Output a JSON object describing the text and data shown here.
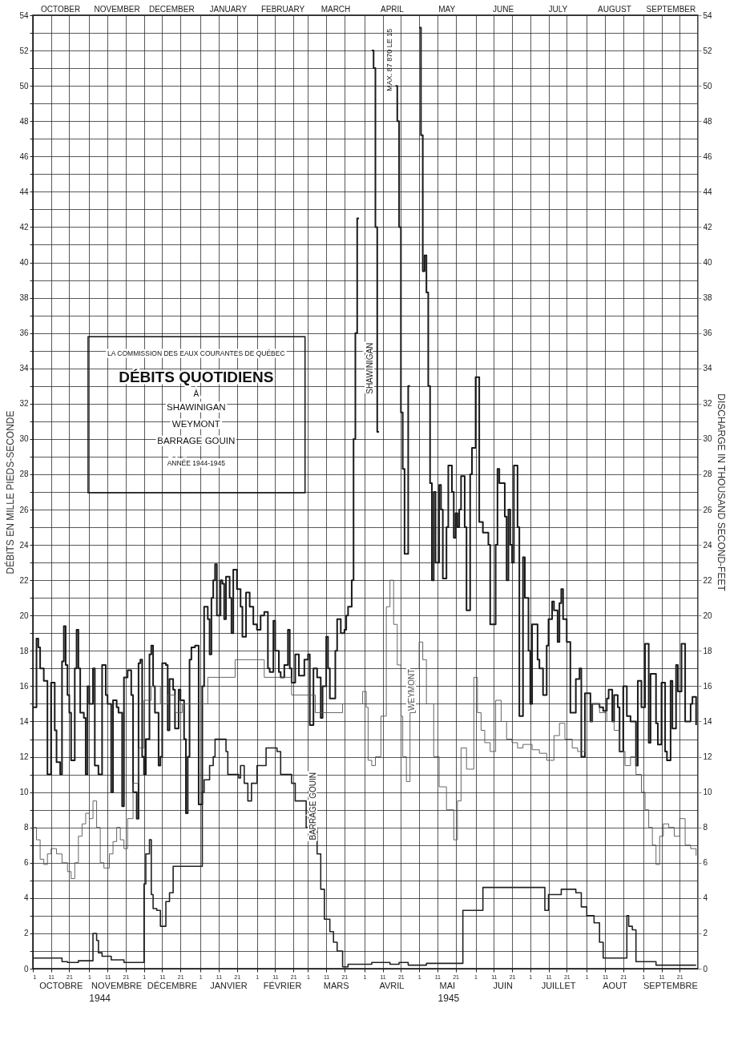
{
  "chart_data": {
    "type": "step",
    "title": "DÉBITS QUOTIDIENS",
    "subtitle": "LA COMMISSION DES EAUX COURANTES DE QUÉBEC",
    "ylabel": "DÉBITS EN MILLE PIEDS-SECONDE",
    "y2label": "DISCHARGE IN THOUSAND SECOND-FEET",
    "annotations": [
      "À",
      "SHAWINIGAN",
      "WEYMONT",
      "BARRAGE GOUIN",
      "ANNÉE 1944-1945",
      "MAX. 87 870 LE 15",
      "1944",
      "1945",
      "OCTOBRE",
      "NOVEMBRE",
      "DÉCEMBRE",
      "JANVIER",
      "FÉVRIER",
      "MARS",
      "AVRIL",
      "MAI",
      "JUIN",
      "JUILLET",
      "AOUT",
      "SEPTEMBRE"
    ],
    "grid": true,
    "xlim": [
      "1944-10-01",
      "1945-10-01"
    ],
    "xticks": [
      {
        "value": "1944-10-01",
        "label": "1"
      },
      {
        "value": "1944-10-11",
        "label": "11"
      },
      {
        "value": "1944-10-21",
        "label": "21"
      },
      {
        "value": "1944-11-01",
        "label": "1"
      },
      {
        "value": "1944-11-11",
        "label": "11"
      },
      {
        "value": "1944-11-21",
        "label": "21"
      },
      {
        "value": "1944-12-01",
        "label": "1"
      },
      {
        "value": "1944-12-11",
        "label": "11"
      },
      {
        "value": "1944-12-21",
        "label": "21"
      },
      {
        "value": "1945-01-01",
        "label": "1"
      },
      {
        "value": "1945-01-11",
        "label": "11"
      },
      {
        "value": "1945-01-21",
        "label": "21"
      },
      {
        "value": "1945-02-01",
        "label": "1"
      },
      {
        "value": "1945-02-11",
        "label": "11"
      },
      {
        "value": "1945-02-21",
        "label": "21"
      },
      {
        "value": "1945-03-01",
        "label": "1"
      },
      {
        "value": "1945-03-11",
        "label": "11"
      },
      {
        "value": "1945-03-21",
        "label": "21"
      },
      {
        "value": "1945-04-01",
        "label": "1"
      },
      {
        "value": "1945-04-11",
        "label": "11"
      },
      {
        "value": "1945-04-21",
        "label": "21"
      },
      {
        "value": "1945-05-01",
        "label": "1"
      },
      {
        "value": "1945-05-11",
        "label": "11"
      },
      {
        "value": "1945-05-21",
        "label": "21"
      },
      {
        "value": "1945-06-01",
        "label": "1"
      },
      {
        "value": "1945-06-11",
        "label": "11"
      },
      {
        "value": "1945-06-21",
        "label": "21"
      },
      {
        "value": "1945-07-01",
        "label": "1"
      },
      {
        "value": "1945-07-11",
        "label": "11"
      },
      {
        "value": "1945-07-21",
        "label": "21"
      },
      {
        "value": "1945-08-01",
        "label": "1"
      },
      {
        "value": "1945-08-11",
        "label": "11"
      },
      {
        "value": "1945-08-21",
        "label": "21"
      },
      {
        "value": "1945-09-01",
        "label": "1"
      },
      {
        "value": "1945-09-11",
        "label": "11"
      },
      {
        "value": "1945-09-21",
        "label": "21"
      }
    ],
    "x2lim": [
      "1944-10-01",
      "1945-10-01"
    ],
    "x2ticks": [
      {
        "value": "1944-10-16",
        "label": "OCTOBER"
      },
      {
        "value": "1944-11-16",
        "label": "NOVEMBER"
      },
      {
        "value": "1944-12-16",
        "label": "DECEMBER"
      },
      {
        "value": "1945-01-16",
        "label": "JANUARY"
      },
      {
        "value": "1945-02-15",
        "label": "FEBRUARY"
      },
      {
        "value": "1945-03-16",
        "label": "MARCH"
      },
      {
        "value": "1945-04-16",
        "label": "APRIL"
      },
      {
        "value": "1945-05-16",
        "label": "MAY"
      },
      {
        "value": "1945-06-16",
        "label": "JUNE"
      },
      {
        "value": "1945-07-16",
        "label": "JULY"
      },
      {
        "value": "1945-08-16",
        "label": "AUGUST"
      },
      {
        "value": "1945-09-16",
        "label": "SEPTEMBER"
      }
    ],
    "ylim": [
      0,
      54
    ],
    "yticks": [
      0,
      {
        "value": 1,
        "label": null
      },
      2,
      {
        "value": 3,
        "label": null
      },
      4,
      {
        "value": 5,
        "label": null
      },
      6,
      {
        "value": 7,
        "label": null
      },
      8,
      {
        "value": 9,
        "label": null
      },
      10,
      {
        "value": 11,
        "label": null
      },
      12,
      {
        "value": 13,
        "label": null
      },
      14,
      {
        "value": 15,
        "label": null
      },
      16,
      {
        "value": 17,
        "label": null
      },
      18,
      {
        "value": 19,
        "label": null
      },
      20,
      {
        "value": 21,
        "label": null
      },
      22,
      {
        "value": 23,
        "label": null
      },
      24,
      {
        "value": 25,
        "label": null
      },
      26,
      {
        "value": 27,
        "label": null
      },
      28,
      {
        "value": 29,
        "label": null
      },
      30,
      {
        "value": 31,
        "label": null
      },
      32,
      {
        "value": 33,
        "label": null
      },
      34,
      {
        "value": 35,
        "label": null
      },
      36,
      {
        "value": 37,
        "label": null
      },
      38,
      {
        "value": 39,
        "label": null
      },
      40,
      {
        "value": 41,
        "label": null
      },
      42,
      {
        "value": 43,
        "label": null
      },
      44,
      {
        "value": 45,
        "label": null
      },
      46,
      {
        "value": 47,
        "label": null
      },
      48,
      {
        "value": 49,
        "label": null
      },
      50,
      {
        "value": 51,
        "label": null
      },
      52,
      {
        "value": 53,
        "label": null
      },
      54
    ],
    "y2lim": [
      0,
      54
    ],
    "y2ticks": [
      0,
      2,
      4,
      6,
      8,
      10,
      12,
      14,
      16,
      18,
      20,
      22,
      24,
      26,
      28,
      30,
      32,
      34,
      36,
      38,
      40,
      42,
      44,
      46,
      48,
      50,
      52,
      54
    ],
    "series": [
      {
        "name": "SHAWINIGAN",
        "color": "#1a1a1a",
        "x": [
          "1944-10-01",
          "1944-10-03",
          "1944-10-04",
          "1944-10-05",
          "1944-10-07",
          "1944-10-09",
          "1944-10-11",
          "1944-10-13",
          "1944-10-14",
          "1944-10-16",
          "1944-10-17",
          "1944-10-18",
          "1944-10-19",
          "1944-10-20",
          "1944-10-21",
          "1944-10-22",
          "1944-10-24",
          "1944-10-25",
          "1944-10-26",
          "1944-10-27",
          "1944-10-29",
          "1944-10-30",
          "1944-10-31",
          "1944-11-01",
          "1944-11-03",
          "1944-11-04",
          "1944-11-06",
          "1944-11-08",
          "1944-11-10",
          "1944-11-11",
          "1944-11-13",
          "1944-11-14",
          "1944-11-16",
          "1944-11-17",
          "1944-11-19",
          "1944-11-20",
          "1944-11-22",
          "1944-11-24",
          "1944-11-25",
          "1944-11-27",
          "1944-11-28",
          "1944-11-29",
          "1944-11-30",
          "1944-12-01",
          "1944-12-02",
          "1944-12-04",
          "1944-12-05",
          "1944-12-06",
          "1944-12-07",
          "1944-12-09",
          "1944-12-10",
          "1944-12-11",
          "1944-12-13",
          "1944-12-14",
          "1944-12-15",
          "1944-12-17",
          "1944-12-18",
          "1944-12-20",
          "1944-12-21",
          "1944-12-23",
          "1944-12-24",
          "1944-12-25",
          "1944-12-26",
          "1944-12-27",
          "1944-12-29",
          "1944-12-31",
          "1945-01-02",
          "1945-01-03",
          "1945-01-05",
          "1945-01-06",
          "1945-01-07",
          "1945-01-08",
          "1945-01-09",
          "1945-01-10",
          "1945-01-12",
          "1945-01-13",
          "1945-01-14",
          "1945-01-15",
          "1945-01-17",
          "1945-01-18",
          "1945-01-19",
          "1945-01-21",
          "1945-01-23",
          "1945-01-24",
          "1945-01-26",
          "1945-01-28",
          "1945-01-30",
          "1945-02-01",
          "1945-02-03",
          "1945-02-05",
          "1945-02-07",
          "1945-02-08",
          "1945-02-10",
          "1945-02-11",
          "1945-02-13",
          "1945-02-14",
          "1945-02-16",
          "1945-02-18",
          "1945-02-19",
          "1945-02-20",
          "1945-02-22",
          "1945-02-24",
          "1945-02-27",
          "1945-03-01",
          "1945-03-02",
          "1945-03-04",
          "1945-03-06",
          "1945-03-08",
          "1945-03-09",
          "1945-03-11",
          "1945-03-12",
          "1945-03-13",
          "1945-03-15",
          "1945-03-16",
          "1945-03-17",
          "1945-03-19",
          "1945-03-21",
          "1945-03-22",
          "1945-03-23",
          "1945-03-25",
          "1945-03-26",
          "1945-03-27",
          "1945-03-28",
          "1945-03-29",
          "1945-04-05",
          "1945-04-06",
          "1945-04-07",
          "1945-04-08",
          "1945-04-09",
          "1945-04-18",
          "1945-04-19",
          "1945-04-20",
          "1945-04-21",
          "1945-04-22",
          "1945-04-23",
          "1945-04-25",
          "1945-04-26",
          "1945-05-01",
          "1945-05-02",
          "1945-05-03",
          "1945-05-04",
          "1945-05-05",
          "1945-05-06",
          "1945-05-07",
          "1945-05-08",
          "1945-05-09",
          "1945-05-10",
          "1945-05-12",
          "1945-05-13",
          "1945-05-14",
          "1945-05-16",
          "1945-05-17",
          "1945-05-19",
          "1945-05-20",
          "1945-05-21",
          "1945-05-22",
          "1945-05-23",
          "1945-05-24",
          "1945-05-26",
          "1945-05-27",
          "1945-05-29",
          "1945-05-30",
          "1945-06-01",
          "1945-06-03",
          "1945-06-05",
          "1945-06-08",
          "1945-06-09",
          "1945-06-12",
          "1945-06-13",
          "1945-06-14",
          "1945-06-17",
          "1945-06-18",
          "1945-06-19",
          "1945-06-20",
          "1945-06-21",
          "1945-06-22",
          "1945-06-24",
          "1945-06-25",
          "1945-06-27",
          "1945-06-28",
          "1945-06-30",
          "1945-07-01",
          "1945-07-02",
          "1945-07-05",
          "1945-07-06",
          "1945-07-08",
          "1945-07-10",
          "1945-07-11",
          "1945-07-13",
          "1945-07-14",
          "1945-07-16",
          "1945-07-17",
          "1945-07-18",
          "1945-07-19",
          "1945-07-21",
          "1945-07-23",
          "1945-07-26",
          "1945-07-28",
          "1945-07-29",
          "1945-07-31",
          "1945-08-03",
          "1945-08-04",
          "1945-08-08",
          "1945-08-10",
          "1945-08-12",
          "1945-08-13",
          "1945-08-15",
          "1945-08-16",
          "1945-08-18",
          "1945-08-19",
          "1945-08-21",
          "1945-08-23",
          "1945-08-25",
          "1945-08-28",
          "1945-08-29",
          "1945-08-31",
          "1945-09-02",
          "1945-09-04",
          "1945-09-05",
          "1945-09-08",
          "1945-09-09",
          "1945-09-11",
          "1945-09-13",
          "1945-09-14",
          "1945-09-16",
          "1945-09-17",
          "1945-09-19",
          "1945-09-20",
          "1945-09-22",
          "1945-09-24",
          "1945-09-27",
          "1945-09-28",
          "1945-09-30"
        ],
        "values": [
          14.8,
          18.7,
          18.2,
          17.0,
          16.3,
          11.0,
          16.2,
          13.5,
          11.7,
          11.0,
          17.4,
          19.4,
          17.2,
          15.5,
          14.5,
          11.8,
          17.0,
          19.2,
          17.0,
          14.5,
          14.2,
          11.0,
          16.0,
          15.0,
          17.0,
          11.5,
          11.0,
          17.2,
          15.5,
          15.0,
          10.0,
          15.2,
          14.8,
          14.5,
          9.2,
          16.5,
          16.9,
          15.5,
          10.0,
          8.5,
          17.3,
          17.5,
          12.0,
          11.0,
          13.0,
          17.8,
          18.3,
          16.0,
          14.5,
          11.5,
          12.0,
          17.3,
          17.2,
          13.5,
          16.4,
          15.8,
          13.6,
          15.8,
          15.2,
          13.0,
          8.8,
          12.0,
          17.5,
          18.2,
          18.3,
          9.3,
          16.0,
          20.5,
          19.8,
          17.8,
          21.0,
          22.0,
          22.9,
          20.0,
          22.0,
          21.8,
          19.8,
          22.2,
          21.0,
          19.0,
          22.6,
          21.5,
          20.5,
          18.8,
          21.3,
          20.5,
          19.5,
          19.2,
          20.0,
          20.2,
          17.0,
          16.8,
          19.7,
          18.0,
          16.8,
          16.5,
          17.2,
          19.2,
          17.0,
          16.2,
          17.8,
          16.6,
          17.5,
          17.8,
          13.8,
          17.0,
          16.5,
          14.2,
          16.0,
          18.8,
          17.0,
          15.3,
          15.3,
          18.0,
          19.8,
          19.0,
          19.2,
          20.0,
          20.5,
          22.0,
          30.0,
          36.0,
          42.5,
          null,
          52.0,
          51.0,
          42.0,
          30.4,
          null,
          50.0,
          48.0,
          42.0,
          31.5,
          28.3,
          23.5,
          33.0,
          null,
          53.3,
          47.2,
          39.5,
          40.4,
          38.3,
          33.0,
          27.5,
          22.0,
          27.0,
          23.0,
          27.4,
          26.0,
          22.1,
          25.0,
          28.5,
          27.0,
          24.4,
          25.8,
          25.0,
          26.0,
          27.9,
          25.0,
          20.3,
          28.0,
          29.5,
          33.5,
          25.3,
          24.7,
          24.0,
          19.5,
          24.0,
          28.3,
          27.5,
          25.6,
          22.0,
          26.0,
          24.0,
          23.0,
          28.5,
          25.0,
          14.3,
          23.3,
          21.0,
          18.0,
          15.0,
          19.5,
          17.5,
          17.0,
          15.5,
          18.3,
          19.8,
          20.8,
          20.3,
          18.5,
          20.7,
          21.5,
          19.8,
          18.5,
          14.5,
          16.4,
          17.0,
          12.0,
          15.6,
          14.0,
          15.0,
          14.8,
          14.6,
          15.3,
          15.8,
          14.0,
          15.5,
          14.8,
          12.3,
          16.0,
          14.3,
          14.0,
          11.5,
          16.3,
          14.8,
          18.4,
          12.8,
          16.7,
          13.9,
          12.7,
          16.2,
          12.3,
          11.8,
          16.3,
          13.6,
          17.2,
          15.7,
          18.4,
          14.0,
          15.0,
          15.4,
          13.8
        ]
      },
      {
        "name": "WEYMONT",
        "color": "#555555",
        "x": [
          "1944-10-01",
          "1944-10-03",
          "1944-10-05",
          "1944-10-07",
          "1944-10-09",
          "1944-10-11",
          "1944-10-14",
          "1944-10-17",
          "1944-10-20",
          "1944-10-22",
          "1944-10-24",
          "1944-10-26",
          "1944-10-28",
          "1944-10-30",
          "1944-11-01",
          "1944-11-03",
          "1944-11-05",
          "1944-11-07",
          "1944-11-09",
          "1944-11-12",
          "1944-11-14",
          "1944-11-16",
          "1944-11-18",
          "1944-11-20",
          "1944-11-22",
          "1944-11-25",
          "1944-11-28",
          "1944-12-01",
          "1944-12-05",
          "1944-12-10",
          "1944-12-14",
          "1944-12-18",
          "1944-12-22",
          "1945-01-05",
          "1945-01-20",
          "1945-02-05",
          "1945-02-20",
          "1945-03-05",
          "1945-03-20",
          "1945-03-31",
          "1945-04-02",
          "1945-04-03",
          "1945-04-05",
          "1945-04-07",
          "1945-04-10",
          "1945-04-13",
          "1945-04-15",
          "1945-04-17",
          "1945-04-19",
          "1945-04-21",
          "1945-04-22",
          "1945-04-24",
          "1945-04-26",
          "1945-04-29",
          "1945-05-01",
          "1945-05-03",
          "1945-05-05",
          "1945-05-09",
          "1945-05-12",
          "1945-05-16",
          "1945-05-20",
          "1945-05-22",
          "1945-05-24",
          "1945-05-27",
          "1945-05-31",
          "1945-06-02",
          "1945-06-04",
          "1945-06-06",
          "1945-06-09",
          "1945-06-12",
          "1945-06-15",
          "1945-06-18",
          "1945-06-21",
          "1945-06-24",
          "1945-06-27",
          "1945-07-02",
          "1945-07-06",
          "1945-07-10",
          "1945-07-14",
          "1945-07-17",
          "1945-07-20",
          "1945-07-24",
          "1945-07-27",
          "1945-07-31",
          "1945-08-04",
          "1945-08-08",
          "1945-08-12",
          "1945-08-16",
          "1945-08-19",
          "1945-08-22",
          "1945-08-25",
          "1945-08-28",
          "1945-08-31",
          "1945-09-02",
          "1945-09-04",
          "1945-09-06",
          "1945-09-08",
          "1945-09-10",
          "1945-09-12",
          "1945-09-15",
          "1945-09-18",
          "1945-09-21",
          "1945-09-24",
          "1945-09-27",
          "1945-09-30"
        ],
        "values": [
          8.0,
          7.3,
          6.2,
          5.9,
          6.5,
          6.8,
          6.5,
          6.0,
          5.5,
          5.1,
          6.0,
          7.5,
          8.2,
          8.8,
          8.5,
          9.5,
          8.0,
          6.0,
          5.7,
          6.5,
          7.2,
          8.0,
          7.3,
          6.8,
          8.5,
          10.5,
          12.5,
          15.2,
          16.0,
          15.0,
          15.5,
          14.5,
          15.0,
          16.5,
          17.5,
          16.5,
          15.5,
          14.5,
          15.0,
          15.7,
          14.8,
          11.8,
          11.5,
          12.0,
          14.3,
          20.5,
          22.0,
          19.5,
          17.2,
          14.3,
          12.0,
          10.6,
          14.5,
          17.0,
          18.5,
          17.5,
          15.0,
          12.0,
          10.3,
          9.0,
          7.3,
          9.5,
          12.5,
          11.3,
          16.5,
          14.5,
          13.5,
          12.8,
          12.3,
          15.2,
          14.0,
          13.0,
          12.8,
          12.5,
          12.7,
          12.4,
          12.2,
          11.8,
          13.2,
          13.9,
          13.0,
          12.5,
          12.3,
          14.0,
          15.0,
          14.5,
          14.0,
          13.5,
          12.3,
          11.5,
          12.0,
          11.0,
          10.0,
          9.0,
          8.0,
          7.0,
          5.9,
          7.5,
          8.2,
          8.0,
          7.5,
          8.5,
          7.0,
          6.8,
          6.4
        ]
      },
      {
        "name": "BARRAGE GOUIN",
        "color": "#222222",
        "x": [
          "1944-10-01",
          "1944-10-17",
          "1944-10-20",
          "1944-10-26",
          "1944-11-03",
          "1944-11-05",
          "1944-11-06",
          "1944-11-08",
          "1944-11-13",
          "1944-11-20",
          "1944-12-01",
          "1944-12-02",
          "1944-12-04",
          "1944-12-05",
          "1944-12-06",
          "1944-12-08",
          "1944-12-10",
          "1944-12-13",
          "1944-12-15",
          "1944-12-17",
          "1945-01-02",
          "1945-01-03",
          "1945-01-06",
          "1945-01-08",
          "1945-01-09",
          "1945-01-15",
          "1945-01-16",
          "1945-01-22",
          "1945-01-23",
          "1945-01-25",
          "1945-01-27",
          "1945-01-29",
          "1945-02-01",
          "1945-02-06",
          "1945-02-12",
          "1945-02-14",
          "1945-02-20",
          "1945-02-22",
          "1945-02-28",
          "1945-03-06",
          "1945-03-08",
          "1945-03-10",
          "1945-03-13",
          "1945-03-15",
          "1945-03-17",
          "1945-03-20",
          "1945-03-23",
          "1945-04-05",
          "1945-04-15",
          "1945-04-20",
          "1945-04-25",
          "1945-05-05",
          "1945-05-25",
          "1945-06-05",
          "1945-07-09",
          "1945-07-11",
          "1945-07-18",
          "1945-07-26",
          "1945-07-29",
          "1945-08-01",
          "1945-08-05",
          "1945-08-08",
          "1945-08-10",
          "1945-08-23",
          "1945-08-24",
          "1945-08-26",
          "1945-08-28",
          "1945-09-08",
          "1945-09-30"
        ],
        "values": [
          0.6,
          0.4,
          0.35,
          0.45,
          2.0,
          1.6,
          0.9,
          0.7,
          0.5,
          0.35,
          4.8,
          6.5,
          7.3,
          4.2,
          3.4,
          3.3,
          2.4,
          3.8,
          4.3,
          5.8,
          10.0,
          10.7,
          11.5,
          12.0,
          13.0,
          12.3,
          11.0,
          10.8,
          11.5,
          10.5,
          9.5,
          10.5,
          11.5,
          12.5,
          12.3,
          11.0,
          10.5,
          9.5,
          8.0,
          6.5,
          4.5,
          2.8,
          2.1,
          1.5,
          1.0,
          0.1,
          0.25,
          0.35,
          0.25,
          0.35,
          0.2,
          0.3,
          3.3,
          4.6,
          3.3,
          4.2,
          4.5,
          4.3,
          3.5,
          3.0,
          2.6,
          1.5,
          0.6,
          3.0,
          2.4,
          2.2,
          0.4,
          0.2,
          0.2
        ]
      }
    ]
  }
}
